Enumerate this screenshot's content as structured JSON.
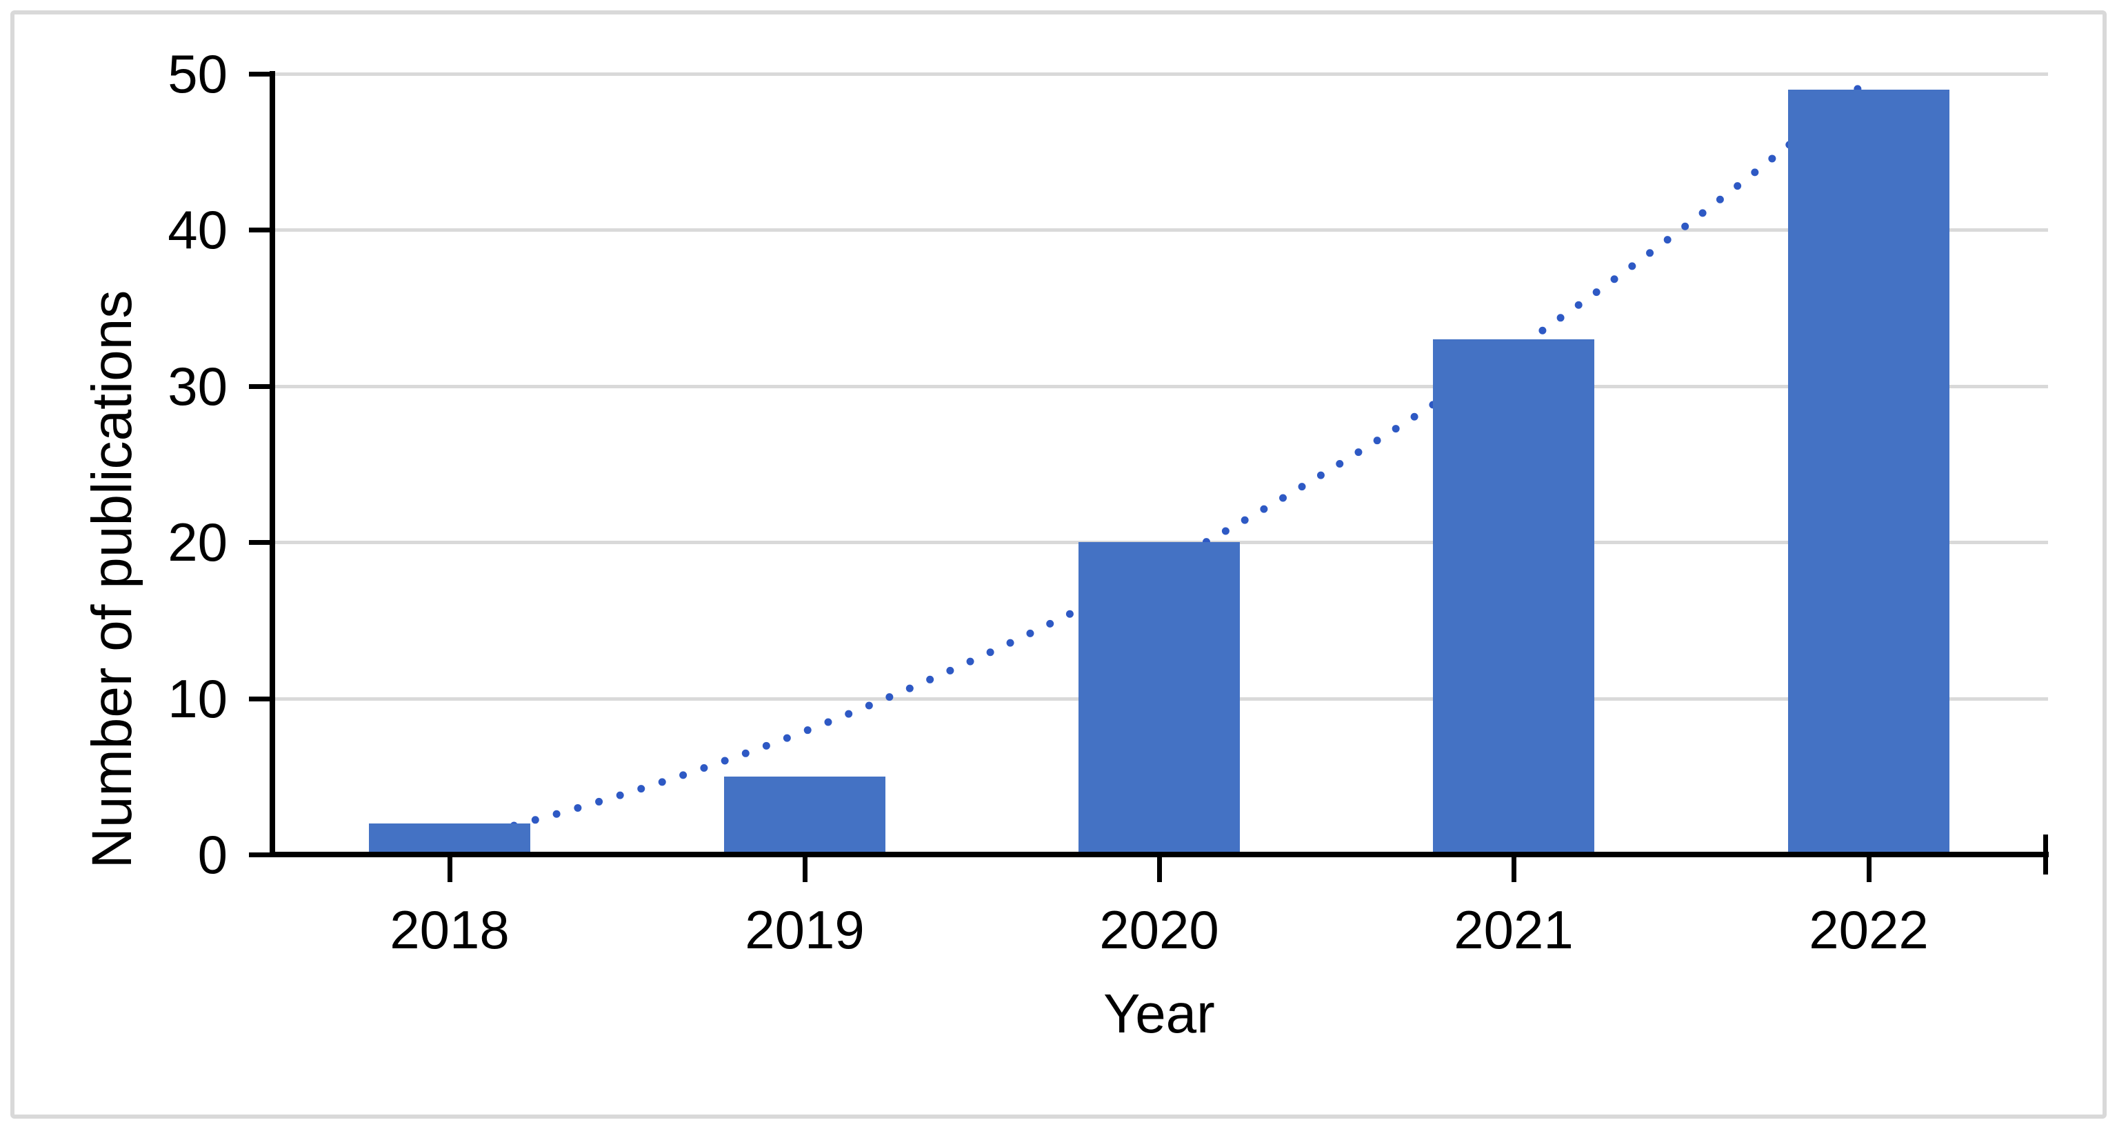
{
  "figure": {
    "background": "#ffffff",
    "border_color": "#d9d9d9"
  },
  "chart_data": {
    "type": "bar",
    "title": "",
    "categories": [
      "2018",
      "2019",
      "2020",
      "2021",
      "2022"
    ],
    "values": [
      2,
      5,
      20,
      33,
      49
    ],
    "series": [
      {
        "name": "Number of publications",
        "values": [
          2,
          5,
          20,
          33,
          49
        ]
      }
    ],
    "xlabel": "Year",
    "ylabel": "Number of publications",
    "ylim": [
      0,
      50
    ],
    "ytick_step": 10,
    "ytick_labels": [
      "0",
      "10",
      "20",
      "30",
      "40",
      "50"
    ],
    "grid": "horizontal",
    "legend": "none",
    "trendline": {
      "type": "polynomial-order-2",
      "style": "dotted",
      "color": "#2e59c4",
      "x_domain": [
        0,
        4
      ],
      "fit_coefficients": {
        "a": 1.714,
        "b": 5.343,
        "c": 0.829
      }
    },
    "colors": {
      "bar": "#4472c4",
      "gridline": "#d9d9d9",
      "axis": "#000000",
      "text": "#000000"
    }
  }
}
